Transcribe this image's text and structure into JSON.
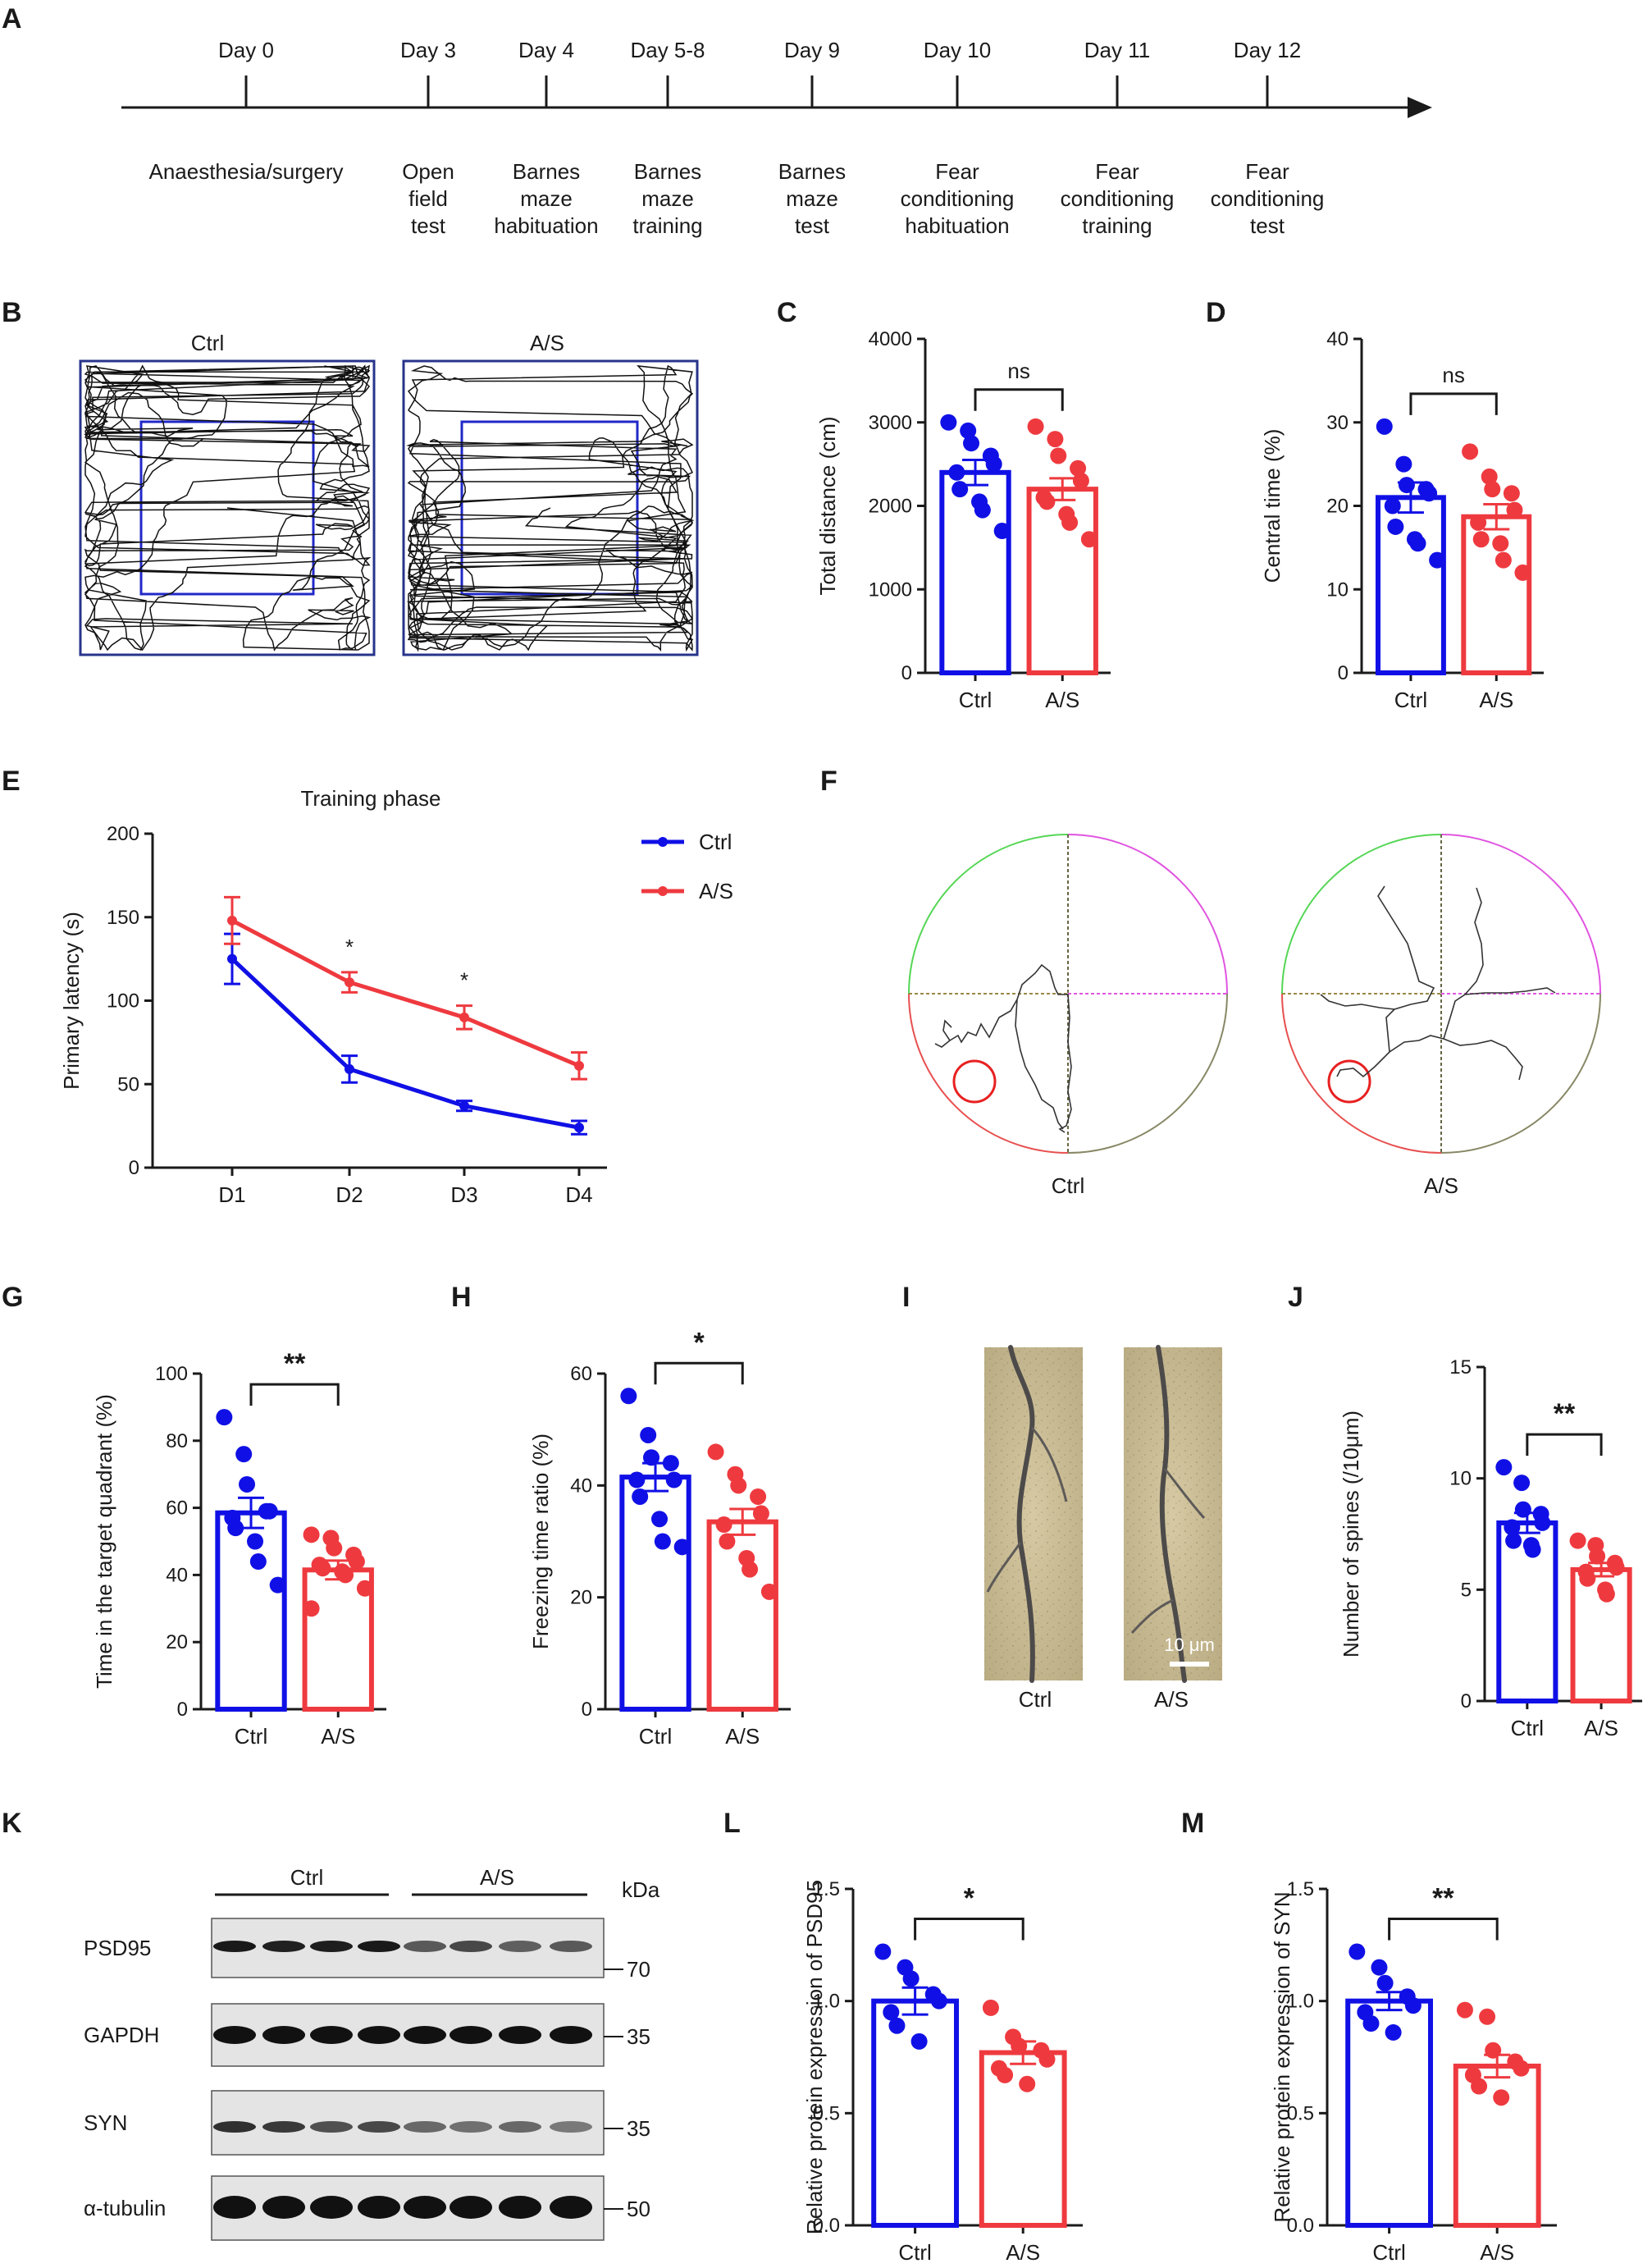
{
  "colors": {
    "ctrl": "#1010e6",
    "as": "#ee3a3f",
    "axis": "#1a1a1a"
  },
  "panel_labels": [
    "A",
    "B",
    "C",
    "D",
    "E",
    "F",
    "G",
    "H",
    "I",
    "J",
    "K",
    "L",
    "M"
  ],
  "timeline": {
    "days": [
      "Day 0",
      "Day 3",
      "Day 4",
      "Day 5-8",
      "Day 9",
      "Day 10",
      "Day 11",
      "Day 12"
    ],
    "events": [
      [
        "Anaesthesia/surgery"
      ],
      [
        "Open",
        "field",
        "test"
      ],
      [
        "Barnes",
        "maze",
        "habituation"
      ],
      [
        "Barnes",
        "maze",
        "training"
      ],
      [
        "Barnes",
        "maze",
        "test"
      ],
      [
        "Fear",
        "conditioning",
        "habituation"
      ],
      [
        "Fear",
        "conditioning",
        "training"
      ],
      [
        "Fear",
        "conditioning",
        "test"
      ]
    ]
  },
  "panel_b": {
    "labels": [
      "Ctrl",
      "A/S"
    ]
  },
  "panel_f": {
    "labels": [
      "Ctrl",
      "A/S"
    ]
  },
  "panel_i": {
    "labels": [
      "Ctrl",
      "A/S"
    ],
    "scalebar": "10 μm"
  },
  "panel_k": {
    "groups": [
      "Ctrl",
      "A/S"
    ],
    "unit": "kDa",
    "rows": [
      {
        "name": "PSD95",
        "marker": "70"
      },
      {
        "name": "GAPDH",
        "marker": "35"
      },
      {
        "name": "SYN",
        "marker": "35"
      },
      {
        "name": "α-tubulin",
        "marker": "50"
      }
    ]
  },
  "chart_data": [
    {
      "id": "C",
      "type": "bar",
      "categories": [
        "Ctrl",
        "A/S"
      ],
      "values": [
        2400,
        2200
      ],
      "errors": [
        150,
        130
      ],
      "points": [
        [
          3000,
          2900,
          2750,
          2600,
          2500,
          2400,
          2200,
          2050,
          1950,
          1700
        ],
        [
          2950,
          2800,
          2600,
          2450,
          2300,
          2100,
          2050,
          1900,
          1800,
          1600
        ]
      ],
      "ylabel": "Total distance (cm)",
      "ylim": [
        0,
        4000
      ],
      "yticks": [
        0,
        1000,
        2000,
        3000,
        4000
      ],
      "significance": "ns"
    },
    {
      "id": "D",
      "type": "bar",
      "categories": [
        "Ctrl",
        "A/S"
      ],
      "values": [
        21,
        18.7
      ],
      "errors": [
        1.8,
        1.5
      ],
      "points": [
        [
          29.5,
          25,
          22.5,
          22,
          21.5,
          20,
          17.5,
          16,
          15.5,
          13.5
        ],
        [
          26.5,
          23.5,
          22,
          21.5,
          19.5,
          18,
          16,
          15.5,
          13.5,
          12
        ]
      ],
      "ylabel": "Central time (%)",
      "ylim": [
        0,
        40
      ],
      "yticks": [
        0,
        10,
        20,
        30,
        40
      ],
      "significance": "ns"
    },
    {
      "id": "E",
      "type": "line",
      "title": "Training phase",
      "categories": [
        "D1",
        "D2",
        "D3",
        "D4"
      ],
      "series": [
        {
          "name": "Ctrl",
          "values": [
            125,
            59,
            37,
            24
          ],
          "errors": [
            15,
            8,
            3,
            4
          ]
        },
        {
          "name": "A/S",
          "values": [
            148,
            111,
            90,
            61
          ],
          "errors": [
            14,
            6,
            7,
            8
          ]
        }
      ],
      "ylabel": "Primary latency (s)",
      "ylim": [
        0,
        200
      ],
      "yticks": [
        0,
        50,
        100,
        150,
        200
      ],
      "significance": [
        "",
        "*",
        "*",
        ""
      ],
      "legend": "top-right"
    },
    {
      "id": "G",
      "type": "bar",
      "categories": [
        "Ctrl",
        "A/S"
      ],
      "values": [
        58.5,
        41.5
      ],
      "errors": [
        4.5,
        2.8
      ],
      "points": [
        [
          87,
          76,
          67,
          59,
          59,
          57,
          54,
          50,
          44,
          37
        ],
        [
          52,
          51,
          48,
          46,
          44,
          43,
          42,
          41,
          40,
          36,
          30
        ]
      ],
      "ylabel": "Time in the target quadrant (%)",
      "ylim": [
        0,
        100
      ],
      "yticks": [
        0,
        20,
        40,
        60,
        80,
        100
      ],
      "significance": "**"
    },
    {
      "id": "H",
      "type": "bar",
      "categories": [
        "Ctrl",
        "A/S"
      ],
      "values": [
        41.5,
        33.5
      ],
      "errors": [
        2.5,
        2.3
      ],
      "points": [
        [
          56,
          49,
          45,
          44,
          41,
          41,
          38,
          34,
          30,
          29
        ],
        [
          46,
          42,
          40,
          38,
          35,
          33,
          30,
          27,
          25,
          21
        ]
      ],
      "ylabel": "Freezing time ratio (%)",
      "ylim": [
        0,
        60
      ],
      "yticks": [
        0,
        20,
        40,
        60
      ],
      "significance": "*"
    },
    {
      "id": "J",
      "type": "bar",
      "categories": [
        "Ctrl",
        "A/S"
      ],
      "values": [
        8.0,
        5.9
      ],
      "errors": [
        0.45,
        0.3
      ],
      "points": [
        [
          10.5,
          9.8,
          8.6,
          8.4,
          8.0,
          7.8,
          7.2,
          7.0,
          6.8
        ],
        [
          7.2,
          7.0,
          6.5,
          6.2,
          6.0,
          5.8,
          5.5,
          5.0,
          4.8
        ]
      ],
      "ylabel": "Number of spines (/10μm)",
      "ylim": [
        0,
        15
      ],
      "yticks": [
        0,
        5,
        10,
        15
      ],
      "significance": "**"
    },
    {
      "id": "L",
      "type": "bar",
      "categories": [
        "Ctrl",
        "A/S"
      ],
      "values": [
        1.0,
        0.77
      ],
      "errors": [
        0.06,
        0.05
      ],
      "points": [
        [
          1.22,
          1.15,
          1.1,
          1.03,
          1.0,
          0.95,
          0.89,
          0.82
        ],
        [
          0.97,
          0.84,
          0.8,
          0.78,
          0.74,
          0.7,
          0.67,
          0.63
        ]
      ],
      "ylabel": "Relative protein expression of PSD95",
      "ylim": [
        0,
        1.5
      ],
      "yticks": [
        "0.0",
        "0.5",
        "1.0",
        "1.5"
      ],
      "significance": "*"
    },
    {
      "id": "M",
      "type": "bar",
      "categories": [
        "Ctrl",
        "A/S"
      ],
      "values": [
        1.0,
        0.71
      ],
      "errors": [
        0.04,
        0.05
      ],
      "points": [
        [
          1.22,
          1.15,
          1.08,
          1.02,
          0.98,
          0.95,
          0.9,
          0.86
        ],
        [
          0.96,
          0.93,
          0.78,
          0.73,
          0.7,
          0.67,
          0.62,
          0.57
        ]
      ],
      "ylabel": "Relative protein expression of SYN",
      "ylim": [
        0,
        1.5
      ],
      "yticks": [
        "0.0",
        "0.5",
        "1.0",
        "1.5"
      ],
      "significance": "**"
    }
  ]
}
